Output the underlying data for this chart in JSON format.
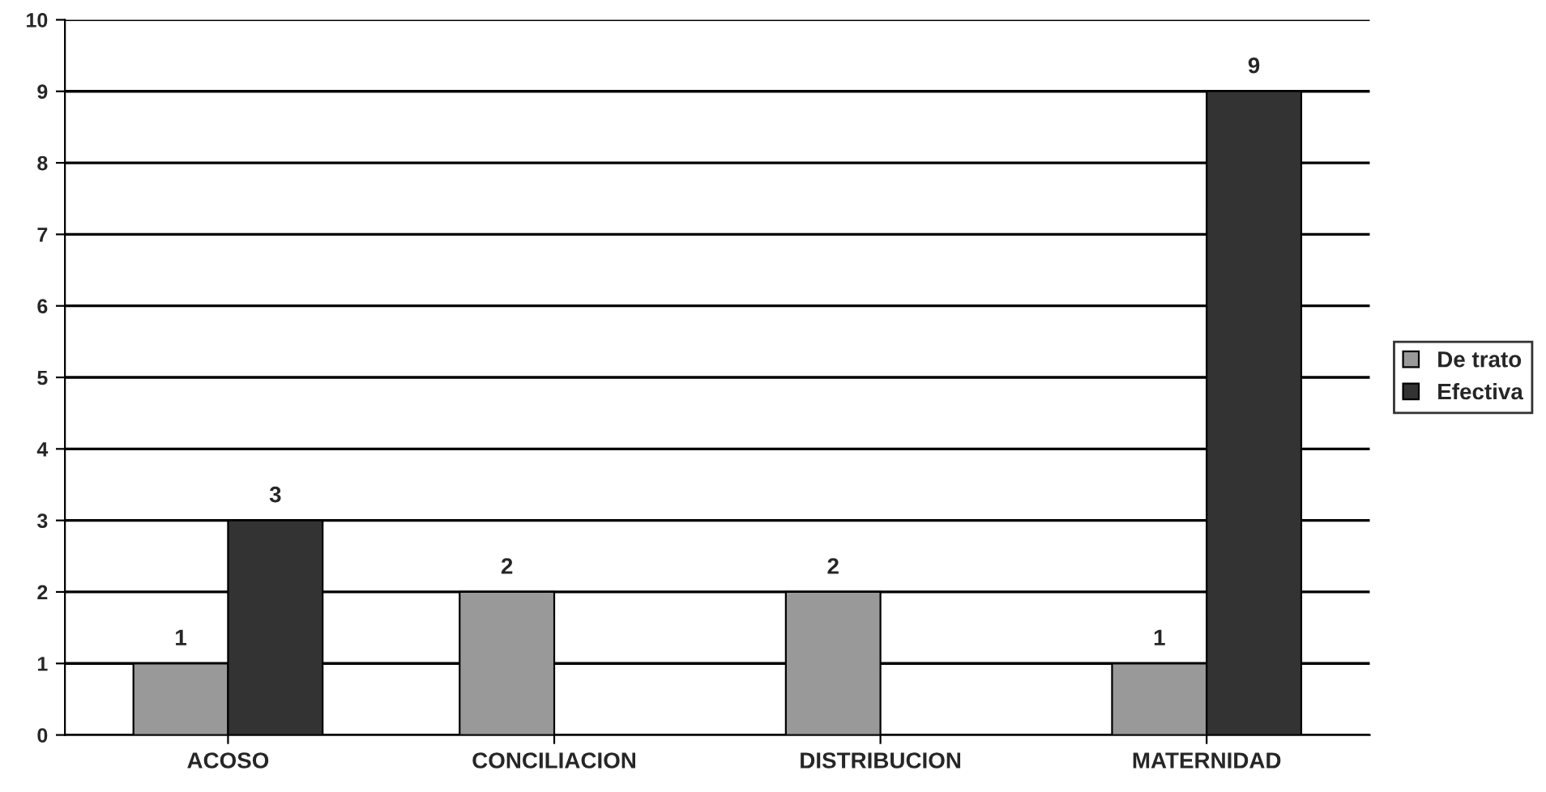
{
  "chart_data": {
    "type": "bar",
    "categories": [
      "ACOSO",
      "CONCILIACION",
      "DISTRIBUCION",
      "MATERNIDAD"
    ],
    "series": [
      {
        "name": "De trato",
        "color": "#999999",
        "values": [
          1,
          2,
          2,
          1
        ]
      },
      {
        "name": "Efectiva",
        "color": "#333333",
        "values": [
          3,
          null,
          null,
          9
        ]
      }
    ],
    "ylim": [
      0,
      10
    ],
    "yticks": [
      0,
      1,
      2,
      3,
      4,
      5,
      6,
      7,
      8,
      9,
      10
    ],
    "grid": "y",
    "legend": "right",
    "data_labels": true
  }
}
